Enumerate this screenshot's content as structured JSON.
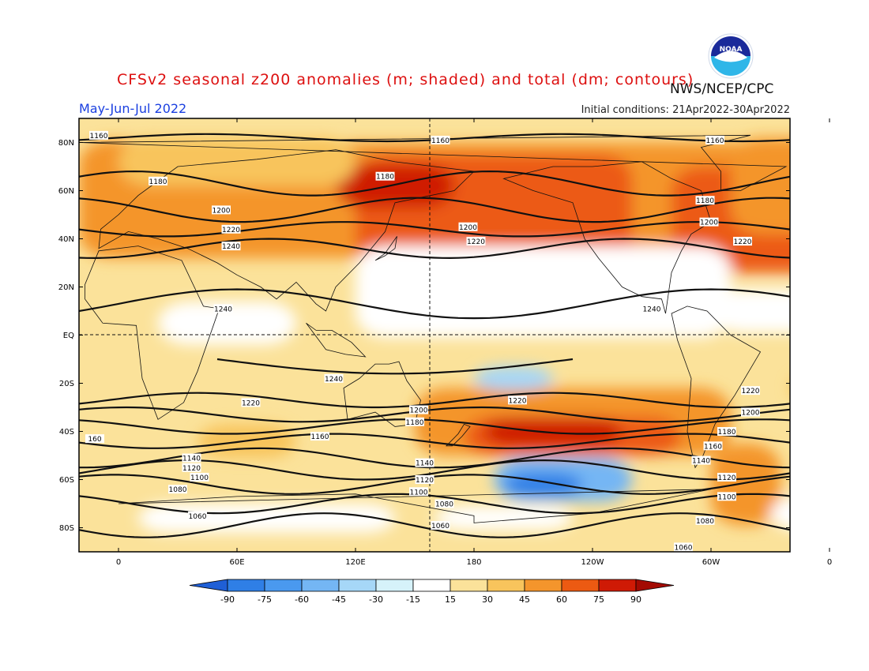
{
  "header": {
    "title": "CFSv2 seasonal z200 anomalies (m; shaded) and total (dm; contours)",
    "title_color": "#dd1010",
    "org": "NWS/NCEP/CPC",
    "season": "May-Jun-Jul 2022",
    "season_color": "#1a3fe0",
    "init": "Initial conditions: 21Apr2022-30Apr2022",
    "logo_text": "NOAA"
  },
  "map": {
    "lat_labels": [
      "80N",
      "60N",
      "40N",
      "20N",
      "EQ",
      "20S",
      "40S",
      "60S",
      "80S"
    ],
    "lon_labels": [
      "0",
      "60E",
      "120E",
      "180",
      "120W",
      "60W",
      "0"
    ],
    "contour_labels": [
      {
        "text": "1160",
        "lat": 83,
        "lon": -10
      },
      {
        "text": "1160",
        "lat": 81,
        "lon": 163
      },
      {
        "text": "1160",
        "lat": 81,
        "lon": 302
      },
      {
        "text": "1180",
        "lat": 64,
        "lon": 20
      },
      {
        "text": "1180",
        "lat": 66,
        "lon": 135
      },
      {
        "text": "1180",
        "lat": 56,
        "lon": 297
      },
      {
        "text": "1200",
        "lat": 52,
        "lon": 52
      },
      {
        "text": "1200",
        "lat": 45,
        "lon": 177
      },
      {
        "text": "1200",
        "lat": 47,
        "lon": 299
      },
      {
        "text": "1220",
        "lat": 44,
        "lon": 57
      },
      {
        "text": "1220",
        "lat": 39,
        "lon": 181
      },
      {
        "text": "1220",
        "lat": 39,
        "lon": 316
      },
      {
        "text": "1240",
        "lat": 37,
        "lon": 57
      },
      {
        "text": "1240",
        "lat": 11,
        "lon": 53
      },
      {
        "text": "1240",
        "lat": 11,
        "lon": 270
      },
      {
        "text": "1240",
        "lat": -18,
        "lon": 109
      },
      {
        "text": "1220",
        "lat": -28,
        "lon": 67
      },
      {
        "text": "1220",
        "lat": -27,
        "lon": 202
      },
      {
        "text": "1220",
        "lat": -23,
        "lon": 320
      },
      {
        "text": "1200",
        "lat": -31,
        "lon": 152
      },
      {
        "text": "1200",
        "lat": -32,
        "lon": 320
      },
      {
        "text": "1180",
        "lat": -36,
        "lon": 150
      },
      {
        "text": "1180",
        "lat": -40,
        "lon": 308
      },
      {
        "text": "1160",
        "lat": -42,
        "lon": 102
      },
      {
        "text": "1160",
        "lat": -46,
        "lon": 301
      },
      {
        "text": "160",
        "lat": -43,
        "lon": -12
      },
      {
        "text": "1140",
        "lat": -51,
        "lon": 37
      },
      {
        "text": "1140",
        "lat": -53,
        "lon": 155
      },
      {
        "text": "1140",
        "lat": -52,
        "lon": 295
      },
      {
        "text": "1120",
        "lat": -55,
        "lon": 37
      },
      {
        "text": "1120",
        "lat": -60,
        "lon": 155
      },
      {
        "text": "1120",
        "lat": -59,
        "lon": 308
      },
      {
        "text": "1100",
        "lat": -59,
        "lon": 41
      },
      {
        "text": "1100",
        "lat": -65,
        "lon": 152
      },
      {
        "text": "1100",
        "lat": -67,
        "lon": 308
      },
      {
        "text": "1080",
        "lat": -64,
        "lon": 30
      },
      {
        "text": "1080",
        "lat": -70,
        "lon": 165
      },
      {
        "text": "1080",
        "lat": -77,
        "lon": 297
      },
      {
        "text": "1060",
        "lat": -75,
        "lon": 40
      },
      {
        "text": "1060",
        "lat": -79,
        "lon": 163
      },
      {
        "text": "1060",
        "lat": -88,
        "lon": 286
      }
    ]
  },
  "colorbar": {
    "labels": [
      "-90",
      "-75",
      "-60",
      "-45",
      "-30",
      "-15",
      "15",
      "30",
      "45",
      "60",
      "75",
      "90"
    ],
    "colors": [
      "#1f5fd6",
      "#2f7fe6",
      "#4a99ef",
      "#74b6f4",
      "#a6d7f7",
      "#d6f2fa",
      "#ffffff",
      "#fbe29a",
      "#f8c45c",
      "#f4952c",
      "#ec5a12",
      "#cf1a05",
      "#a30a02"
    ]
  }
}
